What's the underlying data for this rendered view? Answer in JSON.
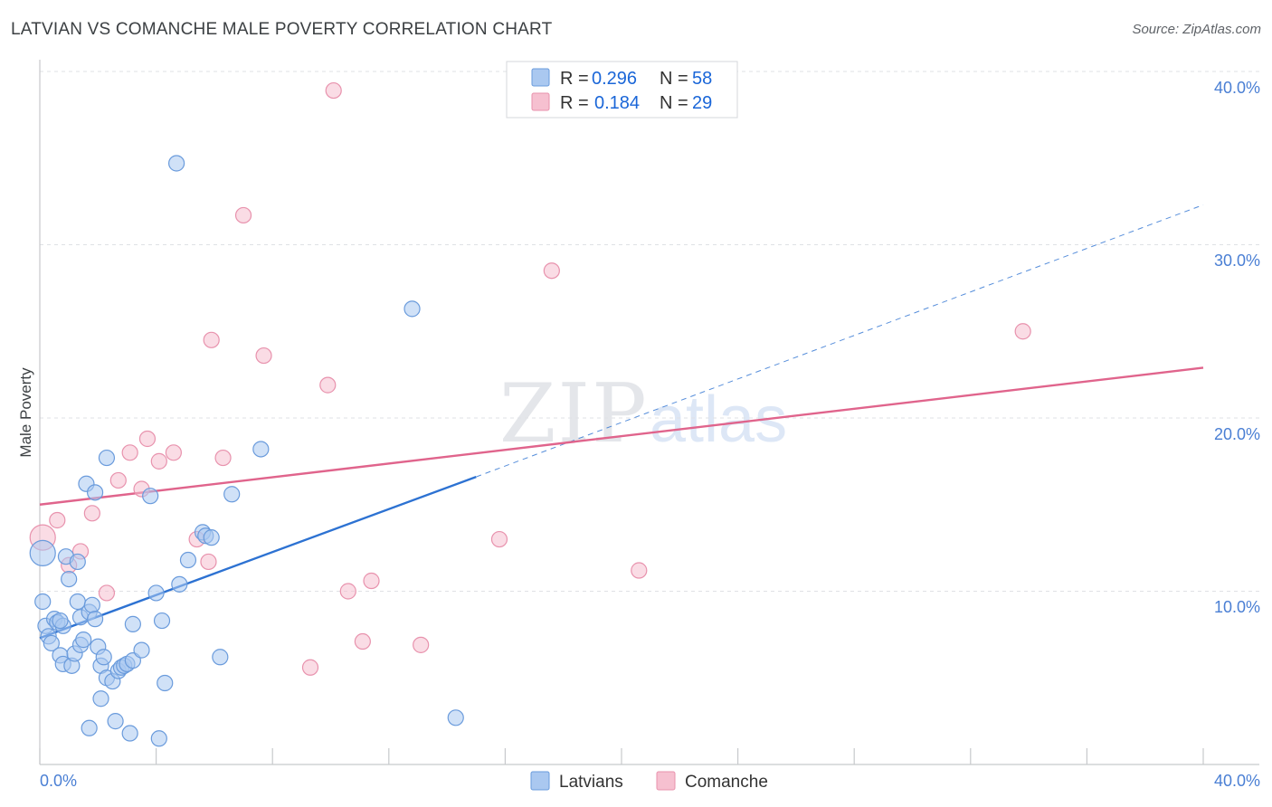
{
  "title": "LATVIAN VS COMANCHE MALE POVERTY CORRELATION CHART",
  "source": "Source: ZipAtlas.com",
  "colors": {
    "latvians_fill": "#aac8f0",
    "latvians_stroke": "#6a9bdc",
    "latvians_line": "#2d72d2",
    "comanche_fill": "#f6c0d0",
    "comanche_stroke": "#e892ad",
    "comanche_line": "#e0648c",
    "axis_label": "#4a7fd4",
    "grid": "#dfe1e5"
  },
  "chart_data": {
    "type": "scatter",
    "title": "LATVIAN VS COMANCHE MALE POVERTY CORRELATION CHART",
    "xlabel": "",
    "ylabel": "Male Poverty",
    "xlim": [
      0,
      40
    ],
    "ylim": [
      0,
      40
    ],
    "x_tick_labels": [
      "0.0%",
      "40.0%"
    ],
    "y_tick_labels": [
      "10.0%",
      "20.0%",
      "30.0%",
      "40.0%"
    ],
    "y_ticks": [
      10,
      20,
      30,
      40
    ],
    "legend": {
      "latvians": {
        "r_label": "R =",
        "r": "0.296",
        "n_label": "N =",
        "n": "58"
      },
      "comanche": {
        "r_label": "R =",
        "r": "0.184",
        "n_label": "N =",
        "n": "29"
      }
    },
    "series": [
      {
        "name": "Latvians",
        "trend": {
          "x0": 0,
          "y0": 7.3,
          "x1": 15,
          "y1": 16.6,
          "dash_to_x": 40,
          "dash_to_y": 32.3
        },
        "points": [
          [
            0.1,
            12.2
          ],
          [
            0.1,
            9.4
          ],
          [
            0.2,
            8.0
          ],
          [
            0.3,
            7.4
          ],
          [
            0.4,
            7.0
          ],
          [
            0.5,
            8.4
          ],
          [
            0.6,
            8.2
          ],
          [
            0.7,
            6.3
          ],
          [
            0.8,
            5.8
          ],
          [
            0.8,
            8.0
          ],
          [
            0.9,
            12.0
          ],
          [
            1.0,
            10.7
          ],
          [
            1.1,
            5.7
          ],
          [
            1.2,
            6.4
          ],
          [
            1.3,
            11.7
          ],
          [
            1.3,
            9.4
          ],
          [
            1.4,
            6.9
          ],
          [
            1.4,
            8.5
          ],
          [
            1.5,
            7.2
          ],
          [
            1.6,
            16.2
          ],
          [
            1.7,
            8.8
          ],
          [
            1.7,
            2.1
          ],
          [
            1.8,
            9.2
          ],
          [
            1.9,
            8.4
          ],
          [
            1.9,
            15.7
          ],
          [
            2.0,
            6.8
          ],
          [
            2.1,
            5.7
          ],
          [
            2.1,
            3.8
          ],
          [
            2.2,
            6.2
          ],
          [
            2.3,
            5.0
          ],
          [
            2.3,
            17.7
          ],
          [
            2.5,
            4.8
          ],
          [
            2.6,
            2.5
          ],
          [
            2.7,
            5.4
          ],
          [
            2.8,
            5.6
          ],
          [
            2.9,
            5.7
          ],
          [
            3.0,
            5.8
          ],
          [
            3.1,
            1.8
          ],
          [
            3.2,
            8.1
          ],
          [
            3.2,
            6.0
          ],
          [
            3.5,
            6.6
          ],
          [
            3.8,
            15.5
          ],
          [
            4.0,
            9.9
          ],
          [
            4.1,
            1.5
          ],
          [
            4.2,
            8.3
          ],
          [
            4.3,
            4.7
          ],
          [
            4.7,
            34.7
          ],
          [
            4.8,
            10.4
          ],
          [
            5.1,
            11.8
          ],
          [
            5.6,
            13.4
          ],
          [
            5.7,
            13.2
          ],
          [
            5.9,
            13.1
          ],
          [
            6.2,
            6.2
          ],
          [
            6.6,
            15.6
          ],
          [
            7.6,
            18.2
          ],
          [
            12.8,
            26.3
          ],
          [
            14.3,
            2.7
          ],
          [
            0.7,
            8.3
          ]
        ]
      },
      {
        "name": "Comanche",
        "trend": {
          "x0": 0,
          "y0": 15.0,
          "x1": 40,
          "y1": 22.9
        },
        "points": [
          [
            0.1,
            13.1
          ],
          [
            0.6,
            14.1
          ],
          [
            1.0,
            11.5
          ],
          [
            1.4,
            12.3
          ],
          [
            1.8,
            14.5
          ],
          [
            2.3,
            9.9
          ],
          [
            2.7,
            16.4
          ],
          [
            3.1,
            18.0
          ],
          [
            3.5,
            15.9
          ],
          [
            3.7,
            18.8
          ],
          [
            4.1,
            17.5
          ],
          [
            4.6,
            18.0
          ],
          [
            5.4,
            13.0
          ],
          [
            5.8,
            11.7
          ],
          [
            5.9,
            24.5
          ],
          [
            6.3,
            17.7
          ],
          [
            7.0,
            31.7
          ],
          [
            7.7,
            23.6
          ],
          [
            9.3,
            5.6
          ],
          [
            9.9,
            21.9
          ],
          [
            10.1,
            38.9
          ],
          [
            10.6,
            10.0
          ],
          [
            11.1,
            7.1
          ],
          [
            11.4,
            10.6
          ],
          [
            13.1,
            6.9
          ],
          [
            15.8,
            13.0
          ],
          [
            17.6,
            28.5
          ],
          [
            20.6,
            11.2
          ],
          [
            33.8,
            25.0
          ]
        ]
      }
    ]
  },
  "bottom_legend": {
    "latvians": "Latvians",
    "comanche": "Comanche"
  },
  "watermark": {
    "zip": "ZIP",
    "atlas": "atlas"
  }
}
